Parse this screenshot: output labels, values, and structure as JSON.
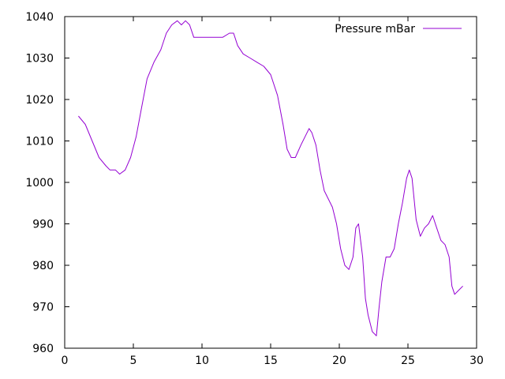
{
  "chart_data": {
    "type": "line",
    "title": "",
    "xlabel": "",
    "ylabel": "",
    "xlim": [
      0,
      30
    ],
    "ylim": [
      960,
      1040
    ],
    "xticks": [
      0,
      5,
      10,
      15,
      20,
      25,
      30
    ],
    "yticks": [
      960,
      970,
      980,
      990,
      1000,
      1010,
      1020,
      1030,
      1040
    ],
    "grid": false,
    "legend_position": "top-right",
    "series": [
      {
        "name": "Pressure mBar",
        "color": "#9400d3",
        "x": [
          1.0,
          1.5,
          2.0,
          2.5,
          3.0,
          3.3,
          3.7,
          4.0,
          4.4,
          4.8,
          5.2,
          5.6,
          6.0,
          6.5,
          7.0,
          7.4,
          7.8,
          8.2,
          8.5,
          8.8,
          9.1,
          9.4,
          9.7,
          10.0,
          10.5,
          11.0,
          11.5,
          12.0,
          12.3,
          12.6,
          13.0,
          13.5,
          14.0,
          14.5,
          15.0,
          15.5,
          15.9,
          16.2,
          16.5,
          16.8,
          17.2,
          17.5,
          17.8,
          18.0,
          18.3,
          18.6,
          18.9,
          19.2,
          19.5,
          19.8,
          20.1,
          20.4,
          20.7,
          21.0,
          21.2,
          21.4,
          21.7,
          21.9,
          22.1,
          22.4,
          22.7,
          22.9,
          23.1,
          23.4,
          23.7,
          24.0,
          24.3,
          24.6,
          24.9,
          25.1,
          25.3,
          25.6,
          25.9,
          26.2,
          26.5,
          26.8,
          27.1,
          27.4,
          27.7,
          28.0,
          28.2,
          28.4,
          28.7,
          29.0
        ],
        "y": [
          1016,
          1014,
          1010,
          1006,
          1004,
          1003,
          1003,
          1002,
          1003,
          1006,
          1011,
          1018,
          1025,
          1029,
          1032,
          1036,
          1038,
          1039,
          1038,
          1039,
          1038,
          1035,
          1035,
          1035,
          1035,
          1035,
          1035,
          1036,
          1036,
          1033,
          1031,
          1030,
          1029,
          1028,
          1026,
          1021,
          1014,
          1008,
          1006,
          1006,
          1009,
          1011,
          1013,
          1012,
          1009,
          1003,
          998,
          996,
          994,
          990,
          984,
          980,
          979,
          982,
          989,
          990,
          982,
          972,
          968,
          964,
          963,
          970,
          976,
          982,
          982,
          984,
          990,
          995,
          1001,
          1003,
          1001,
          991,
          987,
          989,
          990,
          992,
          989,
          986,
          985,
          982,
          975,
          973,
          974,
          975
        ]
      }
    ]
  }
}
